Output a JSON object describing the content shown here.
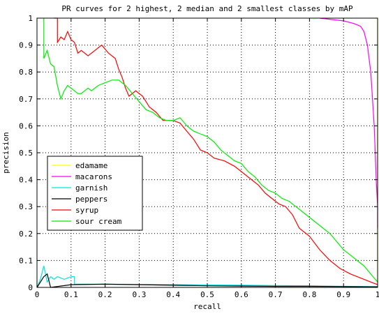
{
  "chart_data": {
    "type": "line",
    "title": "PR curves for 2 highest, 2 median and 2 smallest classes by mAP",
    "xlabel": "recall",
    "ylabel": "precision",
    "xlim": [
      0,
      1
    ],
    "ylim": [
      0,
      1
    ],
    "xticks": [
      "0",
      "0.1",
      "0.2",
      "0.3",
      "0.4",
      "0.5",
      "0.6",
      "0.7",
      "0.8",
      "0.9",
      "1"
    ],
    "yticks": [
      "0",
      "0.1",
      "0.2",
      "0.3",
      "0.4",
      "0.5",
      "0.6",
      "0.7",
      "0.8",
      "0.9",
      "1"
    ],
    "grid": true,
    "grid_style": "dotted",
    "legend_position": "lower-left",
    "series": [
      {
        "name": "edamame",
        "color": "#ffff00",
        "points": [
          [
            0.99,
            1.0
          ],
          [
            1.0,
            1.0
          ],
          [
            1.0,
            0.85
          ],
          [
            1.0,
            0.5
          ],
          [
            1.0,
            0.2
          ],
          [
            1.0,
            0.05
          ],
          [
            1.0,
            0.0
          ]
        ]
      },
      {
        "name": "macarons",
        "color": "#ff00ff",
        "points": [
          [
            0.83,
            1.0
          ],
          [
            0.9,
            0.99
          ],
          [
            0.93,
            0.98
          ],
          [
            0.95,
            0.97
          ],
          [
            0.96,
            0.95
          ],
          [
            0.97,
            0.9
          ],
          [
            0.975,
            0.85
          ],
          [
            0.98,
            0.8
          ],
          [
            0.985,
            0.7
          ],
          [
            0.99,
            0.6
          ],
          [
            0.993,
            0.5
          ],
          [
            0.996,
            0.4
          ],
          [
            1.0,
            0.3
          ],
          [
            1.0,
            0.25
          ],
          [
            1.0,
            0.22
          ]
        ]
      },
      {
        "name": "garnish",
        "color": "#00e5e5",
        "points": [
          [
            0.0,
            0.0
          ],
          [
            0.01,
            0.03
          ],
          [
            0.02,
            0.08
          ],
          [
            0.025,
            0.05
          ],
          [
            0.03,
            0.02
          ],
          [
            0.04,
            0.04
          ],
          [
            0.05,
            0.03
          ],
          [
            0.06,
            0.04
          ],
          [
            0.08,
            0.03
          ],
          [
            0.1,
            0.04
          ],
          [
            0.11,
            0.04
          ],
          [
            0.11,
            0.012
          ],
          [
            0.2,
            0.012
          ],
          [
            0.3,
            0.011
          ],
          [
            0.4,
            0.01
          ],
          [
            0.5,
            0.009
          ],
          [
            0.6,
            0.008
          ],
          [
            0.7,
            0.007
          ],
          [
            0.8,
            0.006
          ],
          [
            0.9,
            0.004
          ],
          [
            1.0,
            0.003
          ]
        ]
      },
      {
        "name": "peppers",
        "color": "#000000",
        "points": [
          [
            0.0,
            0.0
          ],
          [
            0.01,
            0.02
          ],
          [
            0.02,
            0.04
          ],
          [
            0.03,
            0.05
          ],
          [
            0.04,
            0.0
          ],
          [
            0.1,
            0.01
          ],
          [
            0.2,
            0.012
          ],
          [
            0.3,
            0.01
          ],
          [
            0.4,
            0.008
          ],
          [
            0.5,
            0.006
          ],
          [
            0.6,
            0.005
          ],
          [
            0.7,
            0.004
          ],
          [
            0.8,
            0.004
          ],
          [
            0.9,
            0.003
          ],
          [
            1.0,
            0.002
          ]
        ]
      },
      {
        "name": "syrup",
        "color": "#ff0000",
        "points": [
          [
            0.05,
            1.0
          ],
          [
            0.06,
            1.0
          ],
          [
            0.06,
            0.91
          ],
          [
            0.07,
            0.93
          ],
          [
            0.08,
            0.92
          ],
          [
            0.09,
            0.95
          ],
          [
            0.1,
            0.92
          ],
          [
            0.11,
            0.91
          ],
          [
            0.12,
            0.87
          ],
          [
            0.13,
            0.88
          ],
          [
            0.15,
            0.86
          ],
          [
            0.17,
            0.88
          ],
          [
            0.19,
            0.9
          ],
          [
            0.21,
            0.87
          ],
          [
            0.23,
            0.85
          ],
          [
            0.24,
            0.81
          ],
          [
            0.25,
            0.78
          ],
          [
            0.26,
            0.74
          ],
          [
            0.27,
            0.71
          ],
          [
            0.28,
            0.72
          ],
          [
            0.29,
            0.73
          ],
          [
            0.3,
            0.72
          ],
          [
            0.31,
            0.71
          ],
          [
            0.32,
            0.69
          ],
          [
            0.33,
            0.67
          ],
          [
            0.35,
            0.65
          ],
          [
            0.37,
            0.62
          ],
          [
            0.4,
            0.62
          ],
          [
            0.42,
            0.61
          ],
          [
            0.44,
            0.58
          ],
          [
            0.46,
            0.55
          ],
          [
            0.48,
            0.51
          ],
          [
            0.5,
            0.5
          ],
          [
            0.52,
            0.48
          ],
          [
            0.55,
            0.47
          ],
          [
            0.58,
            0.45
          ],
          [
            0.61,
            0.42
          ],
          [
            0.63,
            0.4
          ],
          [
            0.65,
            0.38
          ],
          [
            0.67,
            0.35
          ],
          [
            0.69,
            0.33
          ],
          [
            0.71,
            0.31
          ],
          [
            0.73,
            0.3
          ],
          [
            0.75,
            0.27
          ],
          [
            0.77,
            0.22
          ],
          [
            0.8,
            0.19
          ],
          [
            0.83,
            0.14
          ],
          [
            0.86,
            0.1
          ],
          [
            0.89,
            0.07
          ],
          [
            0.92,
            0.05
          ],
          [
            0.94,
            0.04
          ],
          [
            0.96,
            0.03
          ],
          [
            0.98,
            0.02
          ],
          [
            1.0,
            0.01
          ]
        ]
      },
      {
        "name": "sour cream",
        "color": "#00ee00",
        "points": [
          [
            0.02,
            1.0
          ],
          [
            0.02,
            0.85
          ],
          [
            0.03,
            0.88
          ],
          [
            0.04,
            0.83
          ],
          [
            0.05,
            0.82
          ],
          [
            0.06,
            0.75
          ],
          [
            0.07,
            0.7
          ],
          [
            0.08,
            0.73
          ],
          [
            0.09,
            0.75
          ],
          [
            0.11,
            0.73
          ],
          [
            0.12,
            0.72
          ],
          [
            0.13,
            0.72
          ],
          [
            0.14,
            0.73
          ],
          [
            0.15,
            0.74
          ],
          [
            0.16,
            0.73
          ],
          [
            0.18,
            0.75
          ],
          [
            0.2,
            0.76
          ],
          [
            0.22,
            0.77
          ],
          [
            0.24,
            0.77
          ],
          [
            0.26,
            0.75
          ],
          [
            0.28,
            0.72
          ],
          [
            0.3,
            0.69
          ],
          [
            0.32,
            0.66
          ],
          [
            0.34,
            0.65
          ],
          [
            0.36,
            0.63
          ],
          [
            0.38,
            0.62
          ],
          [
            0.4,
            0.62
          ],
          [
            0.42,
            0.63
          ],
          [
            0.44,
            0.6
          ],
          [
            0.46,
            0.58
          ],
          [
            0.48,
            0.57
          ],
          [
            0.5,
            0.56
          ],
          [
            0.52,
            0.54
          ],
          [
            0.54,
            0.51
          ],
          [
            0.56,
            0.49
          ],
          [
            0.58,
            0.47
          ],
          [
            0.6,
            0.46
          ],
          [
            0.62,
            0.43
          ],
          [
            0.64,
            0.41
          ],
          [
            0.66,
            0.38
          ],
          [
            0.68,
            0.36
          ],
          [
            0.7,
            0.35
          ],
          [
            0.72,
            0.33
          ],
          [
            0.74,
            0.32
          ],
          [
            0.76,
            0.3
          ],
          [
            0.78,
            0.28
          ],
          [
            0.8,
            0.26
          ],
          [
            0.82,
            0.24
          ],
          [
            0.84,
            0.22
          ],
          [
            0.86,
            0.2
          ],
          [
            0.88,
            0.17
          ],
          [
            0.9,
            0.14
          ],
          [
            0.92,
            0.12
          ],
          [
            0.94,
            0.1
          ],
          [
            0.96,
            0.08
          ],
          [
            0.98,
            0.05
          ],
          [
            1.0,
            0.02
          ]
        ]
      }
    ]
  }
}
